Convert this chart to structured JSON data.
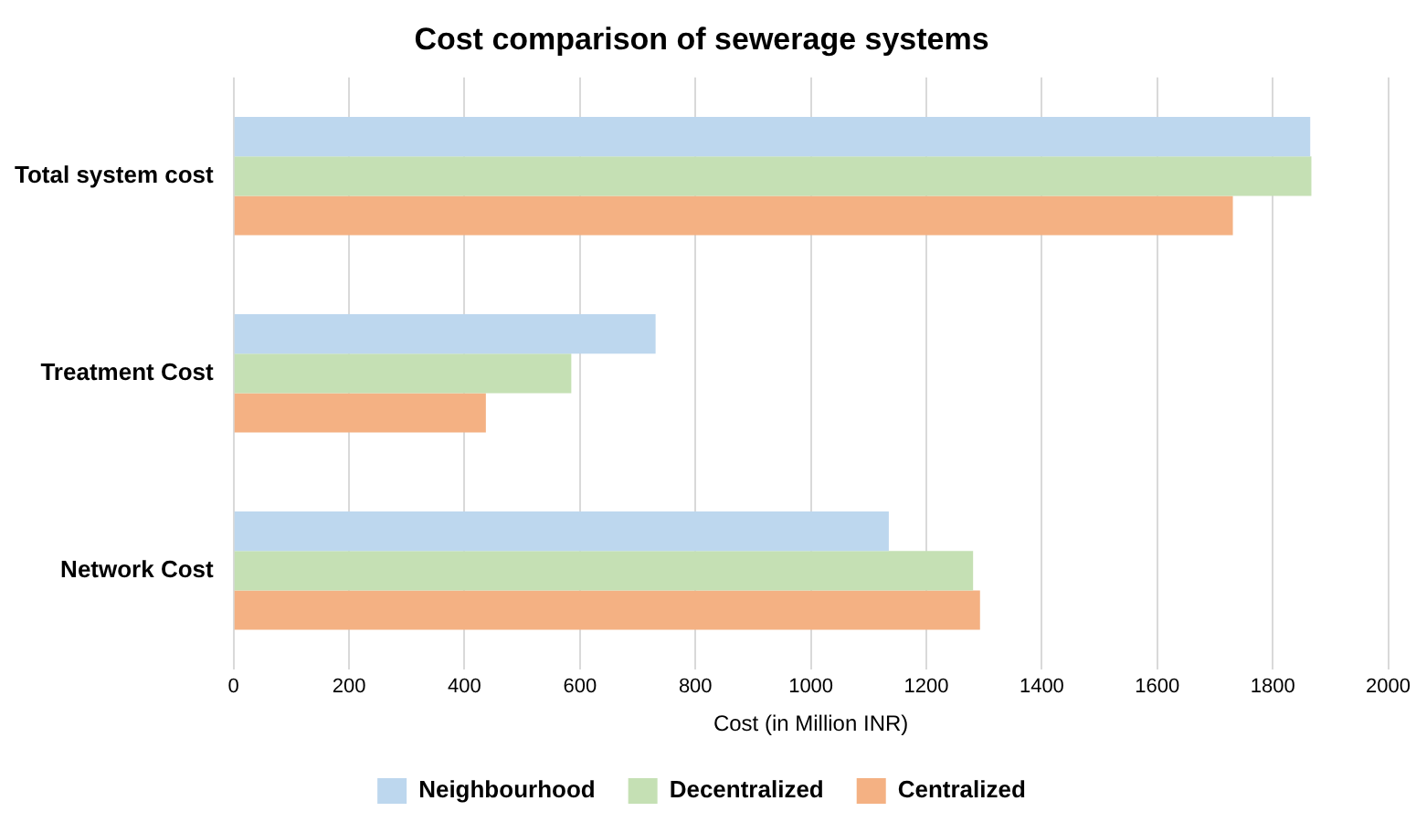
{
  "chart_data": {
    "type": "bar",
    "orientation": "horizontal",
    "title": "Cost comparison of sewerage systems",
    "xlabel": "Cost (in Million INR)",
    "categories": [
      "Total system cost",
      "Treatment Cost",
      "Network Cost"
    ],
    "series": [
      {
        "name": "Neighbourhood",
        "color": "#bdd7ee",
        "values": [
          1865,
          731,
          1135
        ]
      },
      {
        "name": "Decentralized",
        "color": "#c5e0b4",
        "values": [
          1867,
          585,
          1281
        ]
      },
      {
        "name": "Centralized",
        "color": "#f4b183",
        "values": [
          1731,
          437,
          1293
        ]
      }
    ],
    "xlim": [
      0,
      2000
    ],
    "xticks": [
      0,
      200,
      400,
      600,
      800,
      1000,
      1200,
      1400,
      1600,
      1800,
      2000
    ],
    "grid": "x",
    "legend": "bottom"
  }
}
